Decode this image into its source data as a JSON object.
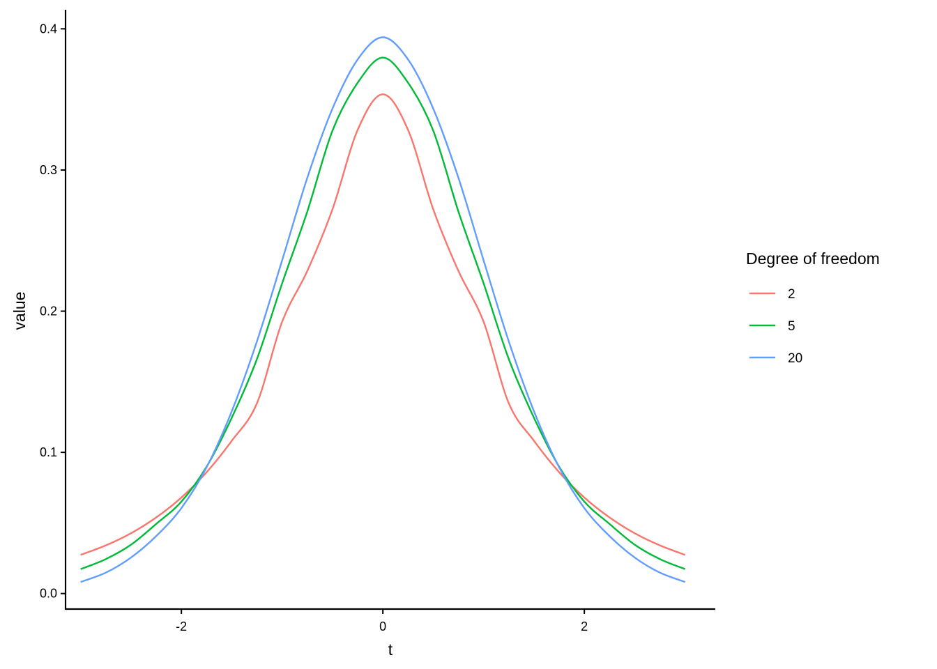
{
  "chart_data": {
    "type": "line",
    "title": "",
    "xlabel": "t",
    "ylabel": "value",
    "xlim": [
      -3.15,
      3.3
    ],
    "ylim": [
      -0.011,
      0.4135
    ],
    "x_ticks": [
      -2,
      0,
      2
    ],
    "x_tick_labels": [
      "-2",
      "0",
      "2"
    ],
    "y_ticks": [
      0.0,
      0.1,
      0.2,
      0.3,
      0.4
    ],
    "y_tick_labels": [
      "0.0",
      "0.1",
      "0.2",
      "0.3",
      "0.4"
    ],
    "grid": false,
    "legend": {
      "title": "Degree of freedom",
      "placement": "right"
    },
    "x": [
      -3.0,
      -2.75,
      -2.5,
      -2.25,
      -2.0,
      -1.75,
      -1.5,
      -1.25,
      -1.0,
      -0.75,
      -0.5,
      -0.25,
      0.0,
      0.25,
      0.5,
      0.75,
      1.0,
      1.25,
      1.5,
      1.75,
      2.0,
      2.25,
      2.5,
      2.75,
      3.0
    ],
    "series": [
      {
        "name": "2",
        "color": "#F8766D",
        "values": [
          0.0274,
          0.0341,
          0.0427,
          0.0539,
          0.068,
          0.0859,
          0.1082,
          0.1348,
          0.1925,
          0.2285,
          0.2722,
          0.3284,
          0.3536,
          0.3284,
          0.2722,
          0.2285,
          0.1925,
          0.1348,
          0.1082,
          0.0859,
          0.068,
          0.0539,
          0.0427,
          0.0341,
          0.0274
        ]
      },
      {
        "name": "5",
        "color": "#00BA38",
        "values": [
          0.0173,
          0.0244,
          0.0346,
          0.0493,
          0.0651,
          0.0898,
          0.1245,
          0.1661,
          0.2197,
          0.2706,
          0.3279,
          0.3618,
          0.3796,
          0.3618,
          0.3279,
          0.2706,
          0.2197,
          0.1661,
          0.1245,
          0.0898,
          0.0651,
          0.0493,
          0.0346,
          0.0244,
          0.0173
        ]
      },
      {
        "name": "20",
        "color": "#619CFF",
        "values": [
          0.0082,
          0.0148,
          0.0255,
          0.0407,
          0.0605,
          0.0894,
          0.1291,
          0.1786,
          0.236,
          0.2945,
          0.3435,
          0.3783,
          0.394,
          0.3783,
          0.3435,
          0.2945,
          0.236,
          0.1786,
          0.1291,
          0.0894,
          0.0605,
          0.0407,
          0.0255,
          0.0148,
          0.0082
        ]
      }
    ]
  }
}
